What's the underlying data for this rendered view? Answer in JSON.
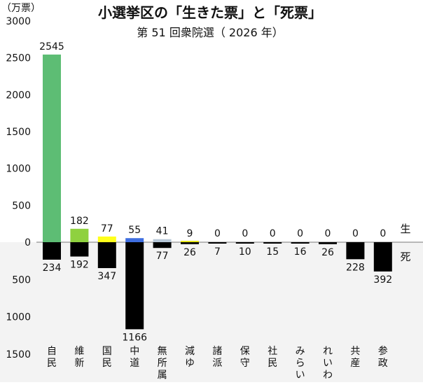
{
  "chart_data": {
    "type": "bar",
    "title": "小選挙区の「生きた票」と「死票」",
    "subtitle": "第 51 回衆院選（ 2026 年）",
    "unit_label": "（万票）",
    "categories": [
      [
        "自",
        "民"
      ],
      [
        "維",
        "新"
      ],
      [
        "国",
        "民"
      ],
      [
        "中",
        "道"
      ],
      [
        "無",
        "所",
        "属"
      ],
      [
        "減",
        "ゆ"
      ],
      [
        "諸",
        "派"
      ],
      [
        "保",
        "守"
      ],
      [
        "社",
        "民"
      ],
      [
        "み",
        "ら",
        "い"
      ],
      [
        "れ",
        "い",
        "わ"
      ],
      [
        "共",
        "産"
      ],
      [
        "参",
        "政"
      ]
    ],
    "series": [
      {
        "name": "生",
        "values": [
          2545,
          182,
          77,
          55,
          41,
          9,
          0,
          0,
          0,
          0,
          0,
          0,
          0
        ],
        "colors": [
          "#5dbd74",
          "#8fd13f",
          "#ffff1a",
          "#3f6ee0",
          "#b6c7d6",
          "#e5e51a",
          "#000000",
          "#000000",
          "#000000",
          "#000000",
          "#000000",
          "#000000",
          "#000000"
        ]
      },
      {
        "name": "死",
        "values": [
          234,
          192,
          347,
          1166,
          77,
          26,
          7,
          10,
          15,
          16,
          26,
          228,
          392
        ],
        "color": "#000000"
      }
    ],
    "y_ticks_up": [
      0,
      500,
      1000,
      1500,
      2000,
      2500,
      3000
    ],
    "y_ticks_down": [
      500,
      1000,
      1500
    ],
    "ylim": [
      -1500,
      3000
    ],
    "grid": false,
    "lower_band_color": "#f3f3f3"
  }
}
